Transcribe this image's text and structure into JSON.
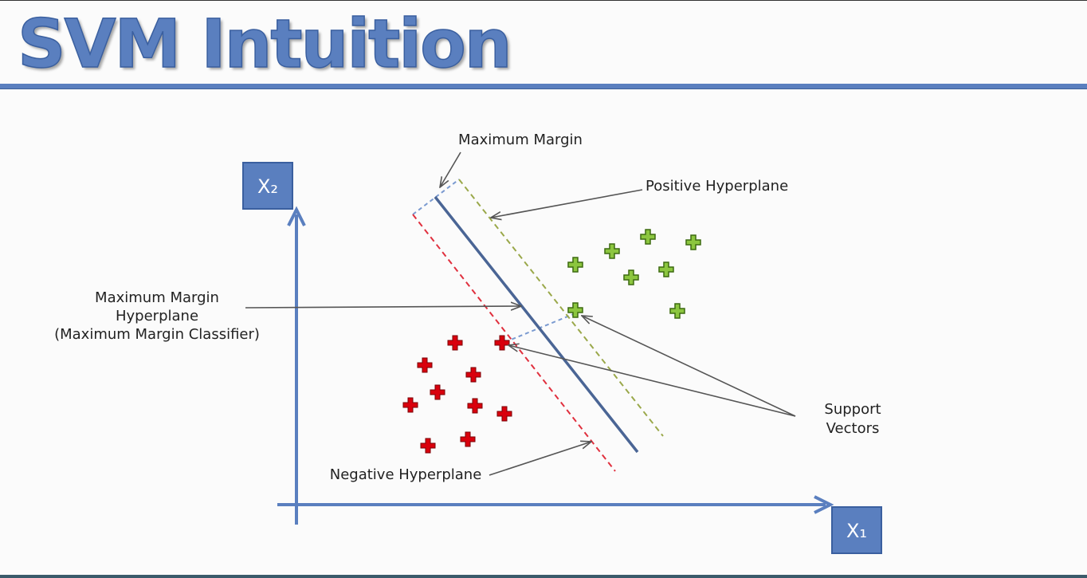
{
  "title": "SVM Intuition",
  "labels": {
    "x1": "X₁",
    "x2": "X₂",
    "maximum_margin": "Maximum Margin",
    "positive_hyperplane": "Positive Hyperplane",
    "mmh_line1": "Maximum Margin",
    "mmh_line2": "Hyperplane",
    "mmh_line3": "(Maximum Margin Classifier)",
    "negative_hyperplane": "Negative Hyperplane",
    "support_line1": "Support",
    "support_line2": "Vectors"
  },
  "colors": {
    "title": "#5a7fbf",
    "axis": "#5a7fbf",
    "hyperplane": "#4a6595",
    "positive_class": "#8cc63f",
    "negative_class": "#d9000d",
    "positive_margin": "#9aa84a",
    "negative_margin": "#e0303e",
    "margin_connector": "#7a9ad0",
    "annotation_arrow": "#555555"
  },
  "icons": {
    "positive": "plus-icon-green",
    "negative": "plus-icon-red"
  }
}
